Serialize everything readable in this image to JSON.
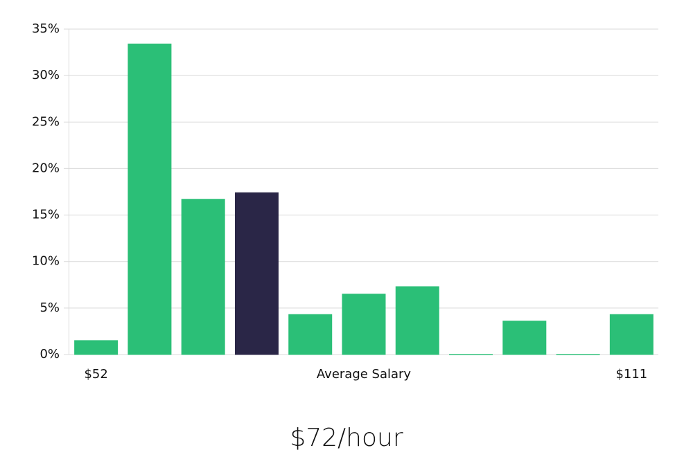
{
  "chart_data": {
    "type": "bar",
    "categories": [
      "$52",
      null,
      null,
      null,
      null,
      null,
      null,
      null,
      null,
      null,
      "$111"
    ],
    "values": [
      1.5,
      33.4,
      16.7,
      17.4,
      4.3,
      6.5,
      7.3,
      0,
      3.6,
      0,
      4.3
    ],
    "colors": [
      "#2bbf77",
      "#2bbf77",
      "#2bbf77",
      "#2a2647",
      "#2bbf77",
      "#2bbf77",
      "#2bbf77",
      "#2bbf77",
      "#2bbf77",
      "#2bbf77",
      "#2bbf77"
    ],
    "xlabel": "Average Salary",
    "subtitle": "$72/hour",
    "ylim": [
      0,
      35
    ],
    "yticks": [
      {
        "value": 0,
        "label": "0%"
      },
      {
        "value": 5,
        "label": "5%"
      },
      {
        "value": 10,
        "label": "10%"
      },
      {
        "value": 15,
        "label": "15%"
      },
      {
        "value": 20,
        "label": "20%"
      },
      {
        "value": 25,
        "label": "25%"
      },
      {
        "value": 30,
        "label": "30%"
      },
      {
        "value": 35,
        "label": "35%"
      }
    ],
    "grid": true
  }
}
